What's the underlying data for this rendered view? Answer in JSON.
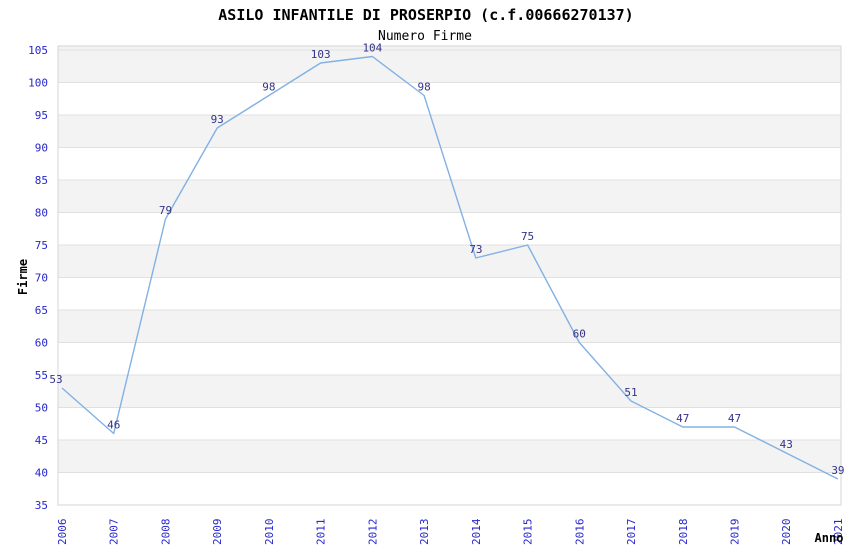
{
  "chart_data": {
    "type": "line",
    "title": "ASILO INFANTILE DI PROSERPIO (c.f.00666270137)",
    "subtitle": "Numero Firme",
    "xlabel": "Anno",
    "ylabel": "Firme",
    "categories": [
      "2006",
      "2007",
      "2008",
      "2009",
      "2010",
      "2011",
      "2012",
      "2013",
      "2014",
      "2015",
      "2016",
      "2017",
      "2018",
      "2019",
      "2020",
      "2021"
    ],
    "series": [
      {
        "name": "Numero Firme",
        "values": [
          53,
          46,
          79,
          93,
          98,
          103,
          104,
          98,
          73,
          75,
          60,
          51,
          47,
          47,
          43,
          39
        ]
      }
    ],
    "ylim": [
      35,
      105
    ],
    "ytick_step": 5,
    "grid": "horizontal-bands-alternating",
    "legend_position": "none",
    "point_labels_visible": true,
    "colors": {
      "line": "#82b1e3",
      "tick_label": "#2626cd",
      "point_label": "#333388",
      "band": "#f3f3f3",
      "gridline": "#e0e0e0",
      "plot_border": "#d6d6d6",
      "title": "#1a1a1a",
      "subtitle": "#555555",
      "axis_title": "#222222",
      "background": "#ffffff"
    }
  }
}
